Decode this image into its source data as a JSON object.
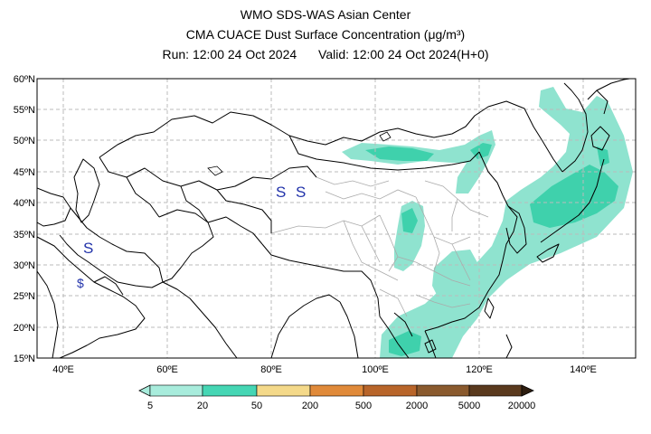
{
  "title": {
    "line1": "WMO SDS-WAS Asian Center",
    "line2": "CMA CUACE Dust Surface Concentration (μg/m³)",
    "run": "Run: 12:00 24 Oct 2024",
    "valid": "Valid: 12:00 24 Oct 2024(H+0)"
  },
  "map": {
    "lon_range": [
      35,
      150
    ],
    "lat_range": [
      15,
      60
    ],
    "x_ticks": [
      "40ºE",
      "60ºE",
      "80ºE",
      "100ºE",
      "120ºE",
      "140ºE"
    ],
    "y_ticks": [
      "60ºN",
      "55ºN",
      "50ºN",
      "45ºN",
      "40ºN",
      "35ºN",
      "30ºN",
      "25ºN",
      "20ºN",
      "15ºN"
    ],
    "grid": true,
    "station_markers": [
      "S",
      "S",
      "S",
      "$"
    ]
  },
  "legend": {
    "ticks": [
      "5",
      "20",
      "50",
      "200",
      "500",
      "2000",
      "5000",
      "20000"
    ],
    "colors": [
      "#a8ecdc",
      "#45d6b4",
      "#f4d98a",
      "#e08a3a",
      "#b8652a",
      "#8a5a2e",
      "#5a3a1e",
      "#2e1e10"
    ]
  },
  "colors": {
    "dust_light": "#8fe3cf",
    "dust_medium": "#3fd1ac",
    "border": "#000000",
    "china_province": "#aaaaaa",
    "grid": "#bbbbbb",
    "marker": "#2233aa"
  }
}
